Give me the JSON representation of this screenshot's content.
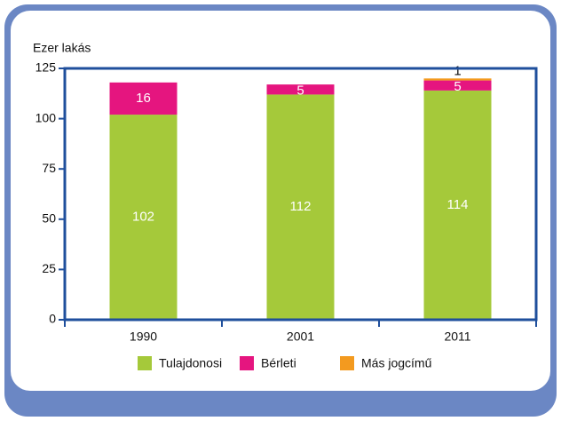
{
  "chart_data": {
    "type": "stacked_bar",
    "y_axis_label": "Ezer lakás",
    "categories": [
      "1990",
      "2001",
      "2011"
    ],
    "series": [
      {
        "name": "Tulajdonosi",
        "color": "#a5c93a",
        "values": [
          102,
          112,
          114
        ]
      },
      {
        "name": "Bérleti",
        "color": "#e5157f",
        "values": [
          16,
          5,
          5
        ]
      },
      {
        "name": "Más jogcímű",
        "color": "#f39a1f",
        "values": [
          null,
          null,
          1
        ]
      }
    ],
    "ylim": [
      0,
      125
    ],
    "yticks": [
      0,
      25,
      50,
      75,
      100,
      125
    ],
    "legend": "bottom"
  }
}
